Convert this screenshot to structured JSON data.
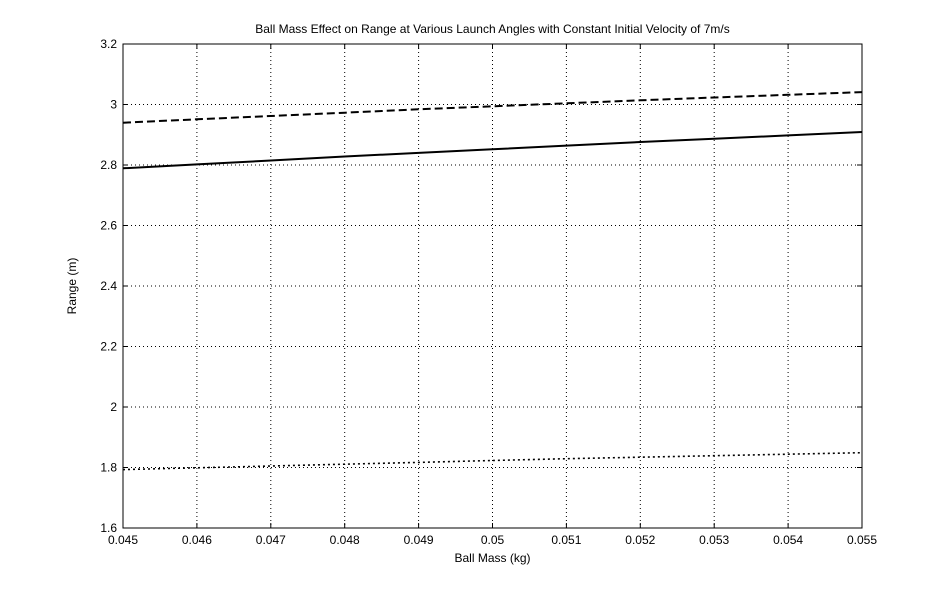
{
  "chart_data": {
    "type": "line",
    "title": "Ball Mass Effect on Range at Various Launch Angles with Constant Initial Velocity of 7m/s",
    "xlabel": "Ball Mass (kg)",
    "ylabel": "Range (m)",
    "xlim": [
      0.045,
      0.055
    ],
    "ylim": [
      1.6,
      3.2
    ],
    "grid": true,
    "x_ticks": [
      0.045,
      0.046,
      0.047,
      0.048,
      0.049,
      0.05,
      0.051,
      0.052,
      0.053,
      0.054,
      0.055
    ],
    "x_tick_labels": [
      "0.045",
      "0.046",
      "0.047",
      "0.048",
      "0.049",
      "0.05",
      "0.051",
      "0.052",
      "0.053",
      "0.054",
      "0.055"
    ],
    "y_ticks": [
      1.6,
      1.8,
      2,
      2.2,
      2.4,
      2.6,
      2.8,
      3,
      3.2
    ],
    "y_tick_labels": [
      "1.6",
      "1.8",
      "2",
      "2.2",
      "2.4",
      "2.6",
      "2.8",
      "3",
      "3.2"
    ],
    "x": [
      0.045,
      0.046,
      0.047,
      0.048,
      0.049,
      0.05,
      0.051,
      0.052,
      0.053,
      0.054,
      0.055
    ],
    "series": [
      {
        "line_style": "dashed",
        "values": [
          2.94,
          2.951,
          2.962,
          2.973,
          2.984,
          2.994,
          3.004,
          3.014,
          3.023,
          3.032,
          3.041
        ]
      },
      {
        "line_style": "solid",
        "values": [
          2.789,
          2.802,
          2.815,
          2.828,
          2.84,
          2.852,
          2.864,
          2.876,
          2.887,
          2.898,
          2.909
        ]
      },
      {
        "line_style": "dotted",
        "values": [
          1.793,
          1.799,
          1.805,
          1.811,
          1.817,
          1.823,
          1.829,
          1.834,
          1.839,
          1.844,
          1.849
        ]
      }
    ],
    "colors": {
      "line": "#000000",
      "grid": "#000000",
      "background": "#ffffff"
    }
  }
}
